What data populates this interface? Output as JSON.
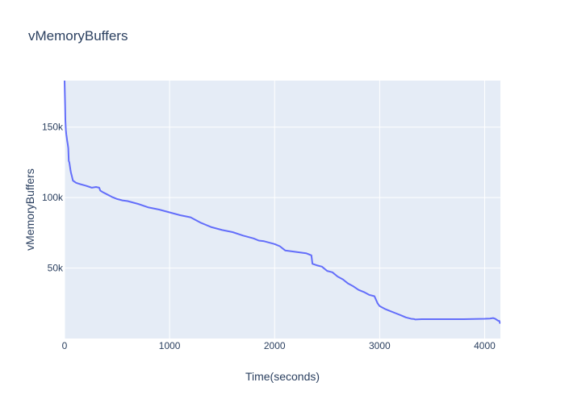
{
  "chart_data": {
    "type": "line",
    "title": "vMemoryBuffers",
    "xlabel": "Time(seconds)",
    "ylabel": "vMemoryBuffers",
    "xlim": [
      0,
      4150
    ],
    "ylim": [
      0,
      183000
    ],
    "x_ticks": [
      0,
      1000,
      2000,
      3000,
      4000
    ],
    "x_tick_labels": [
      "0",
      "1000",
      "2000",
      "3000",
      "4000"
    ],
    "y_ticks": [
      50000,
      100000,
      150000
    ],
    "y_tick_labels": [
      "50k",
      "100k",
      "150k"
    ],
    "grid": true,
    "colors": {
      "line": "#636efa",
      "plot_bg": "#e5ecf6",
      "grid": "#ffffff",
      "text": "#2a3f5f"
    },
    "series": [
      {
        "x": [
          0,
          2,
          5,
          8,
          12,
          16,
          20,
          25,
          30,
          35,
          40,
          45,
          55,
          60,
          70,
          80,
          90,
          100,
          110,
          130,
          150,
          200,
          240,
          260,
          300,
          330,
          340,
          360,
          400,
          450,
          500,
          550,
          600,
          700,
          800,
          900,
          1000,
          1100,
          1200,
          1300,
          1400,
          1450,
          1500,
          1600,
          1700,
          1800,
          1850,
          1900,
          2000,
          2050,
          2100,
          2200,
          2300,
          2350,
          2360,
          2400,
          2450,
          2500,
          2550,
          2600,
          2650,
          2700,
          2750,
          2800,
          2850,
          2900,
          2950,
          2980,
          3000,
          3050,
          3100,
          3150,
          3200,
          3250,
          3300,
          3330,
          3340,
          3400,
          3500,
          3600,
          3700,
          3800,
          3900,
          4000,
          4050,
          4080,
          4100,
          4130,
          4140,
          4145,
          4150
        ],
        "y": [
          183000,
          175000,
          165000,
          155000,
          148000,
          145000,
          143000,
          140000,
          138000,
          135000,
          126000,
          125000,
          120000,
          118000,
          115000,
          112000,
          111500,
          111000,
          110500,
          110000,
          109500,
          108500,
          107500,
          107000,
          107500,
          107000,
          105000,
          104000,
          102500,
          100500,
          99000,
          98000,
          97500,
          95500,
          93000,
          91500,
          89500,
          87500,
          86000,
          82000,
          79000,
          78000,
          77000,
          75500,
          73000,
          71000,
          69500,
          69000,
          67000,
          65500,
          62500,
          61500,
          60500,
          59000,
          53000,
          52000,
          51000,
          48000,
          47000,
          44000,
          42000,
          39000,
          37000,
          34500,
          33000,
          31000,
          30000,
          25000,
          23000,
          21000,
          19500,
          18000,
          16500,
          15000,
          14000,
          13800,
          13500,
          13700,
          13700,
          13700,
          13700,
          13700,
          13900,
          14000,
          14200,
          14500,
          14000,
          12500,
          12500,
          11000,
          11000
        ]
      }
    ]
  }
}
